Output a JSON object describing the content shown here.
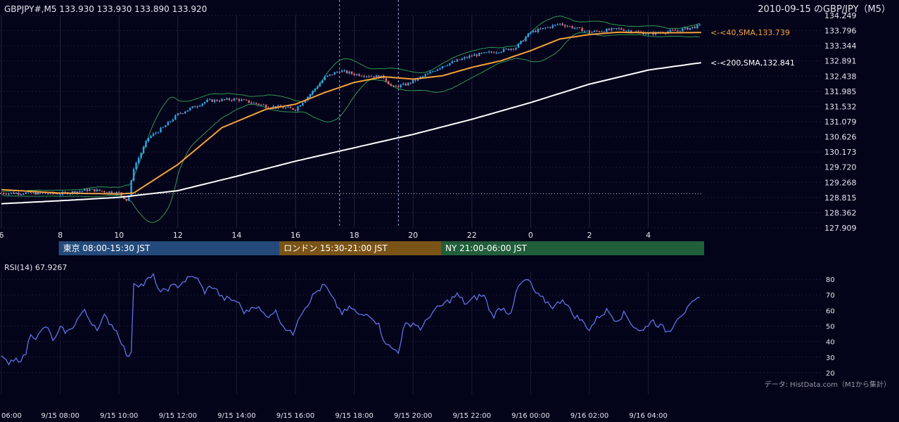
{
  "header": {
    "symbol_info": "GBPJPY#,M5 133.930 133.930 133.890 133.920",
    "chart_title": "2010-09-15 のGBP/JPY（M5）"
  },
  "colors": {
    "background": "#03031a",
    "bull": "#2aa8e8",
    "bear": "#e06a6a",
    "sma40": "#f5a33a",
    "sma200": "#ffffff",
    "bollinger": "#2e9a52",
    "rsi": "#5f74e6",
    "session_tokyo": "#234a7a",
    "session_london": "#7a5416",
    "session_ny": "#215e3a"
  },
  "chart_data": [
    {
      "type": "candlestick",
      "ylim": [
        127.909,
        134.249
      ],
      "y_ticks": [
        "134.249",
        "133.796",
        "133.344",
        "132.891",
        "132.438",
        "131.985",
        "131.532",
        "131.079",
        "130.626",
        "130.173",
        "129.720",
        "129.268",
        "128.815",
        "128.362",
        "127.909"
      ],
      "x_hour_labels": [
        "6",
        "8",
        "10",
        "12",
        "14",
        "16",
        "18",
        "20",
        "22",
        "0",
        "2",
        "4"
      ],
      "x_datetime_labels": [
        "06:00",
        "9/15 08:00",
        "9/15 10:00",
        "9/15 12:00",
        "9/15 14:00",
        "9/15 16:00",
        "9/15 18:00",
        "9/15 20:00",
        "9/15 22:00",
        "9/16 00:00",
        "9/16 02:00",
        "9/16 04:00"
      ],
      "price_path_hourly": [
        {
          "hour": 6.0,
          "price": 128.95
        },
        {
          "hour": 7.0,
          "price": 128.95
        },
        {
          "hour": 8.0,
          "price": 128.93
        },
        {
          "hour": 9.0,
          "price": 129.05
        },
        {
          "hour": 10.0,
          "price": 128.95
        },
        {
          "hour": 10.3,
          "price": 128.7
        },
        {
          "hour": 10.5,
          "price": 129.7
        },
        {
          "hour": 11.0,
          "price": 130.6
        },
        {
          "hour": 11.5,
          "price": 130.9
        },
        {
          "hour": 12.0,
          "price": 131.3
        },
        {
          "hour": 13.0,
          "price": 131.7
        },
        {
          "hour": 14.0,
          "price": 131.75
        },
        {
          "hour": 15.0,
          "price": 131.55
        },
        {
          "hour": 16.0,
          "price": 131.45
        },
        {
          "hour": 16.5,
          "price": 131.9
        },
        {
          "hour": 17.0,
          "price": 132.4
        },
        {
          "hour": 17.5,
          "price": 132.6
        },
        {
          "hour": 18.0,
          "price": 132.5
        },
        {
          "hour": 19.0,
          "price": 132.4
        },
        {
          "hour": 19.3,
          "price": 132.1
        },
        {
          "hour": 19.8,
          "price": 132.2
        },
        {
          "hour": 20.5,
          "price": 132.5
        },
        {
          "hour": 21.0,
          "price": 132.75
        },
        {
          "hour": 22.0,
          "price": 133.05
        },
        {
          "hour": 23.0,
          "price": 133.2
        },
        {
          "hour": 23.5,
          "price": 133.3
        },
        {
          "hour": 24.0,
          "price": 133.75
        },
        {
          "hour": 25.0,
          "price": 134.0
        },
        {
          "hour": 26.0,
          "price": 133.75
        },
        {
          "hour": 27.0,
          "price": 133.85
        },
        {
          "hour": 28.0,
          "price": 133.7
        },
        {
          "hour": 29.0,
          "price": 133.8
        },
        {
          "hour": 29.8,
          "price": 133.95
        }
      ],
      "sma40_hourly": [
        {
          "hour": 6.0,
          "price": 129.05
        },
        {
          "hour": 8.0,
          "price": 128.95
        },
        {
          "hour": 10.0,
          "price": 128.92
        },
        {
          "hour": 10.5,
          "price": 128.95
        },
        {
          "hour": 12.0,
          "price": 129.8
        },
        {
          "hour": 13.5,
          "price": 130.9
        },
        {
          "hour": 15.0,
          "price": 131.45
        },
        {
          "hour": 16.0,
          "price": 131.6
        },
        {
          "hour": 17.0,
          "price": 131.95
        },
        {
          "hour": 18.0,
          "price": 132.25
        },
        {
          "hour": 19.0,
          "price": 132.42
        },
        {
          "hour": 20.0,
          "price": 132.35
        },
        {
          "hour": 21.0,
          "price": 132.45
        },
        {
          "hour": 22.0,
          "price": 132.7
        },
        {
          "hour": 23.0,
          "price": 132.9
        },
        {
          "hour": 24.0,
          "price": 133.2
        },
        {
          "hour": 25.0,
          "price": 133.55
        },
        {
          "hour": 26.0,
          "price": 133.68
        },
        {
          "hour": 27.0,
          "price": 133.75
        },
        {
          "hour": 28.0,
          "price": 133.73
        },
        {
          "hour": 29.8,
          "price": 133.739
        }
      ],
      "sma200_hourly": [
        {
          "hour": 6.0,
          "price": 128.63
        },
        {
          "hour": 8.0,
          "price": 128.72
        },
        {
          "hour": 10.0,
          "price": 128.82
        },
        {
          "hour": 12.0,
          "price": 129.02
        },
        {
          "hour": 14.0,
          "price": 129.45
        },
        {
          "hour": 16.0,
          "price": 129.9
        },
        {
          "hour": 18.0,
          "price": 130.3
        },
        {
          "hour": 20.0,
          "price": 130.7
        },
        {
          "hour": 22.0,
          "price": 131.15
        },
        {
          "hour": 24.0,
          "price": 131.65
        },
        {
          "hour": 26.0,
          "price": 132.2
        },
        {
          "hour": 28.0,
          "price": 132.62
        },
        {
          "hour": 29.8,
          "price": 132.841
        }
      ],
      "sma40_label": "<-<40,SMA,133.739",
      "sma200_label": "<-<200,SMA,132.841",
      "reference_level": 128.93,
      "session_markers_hours": [
        17.5,
        19.5
      ]
    },
    {
      "type": "line",
      "title": "RSI(14) 67.9267",
      "ylim": [
        15,
        85
      ],
      "y_ticks": [
        20,
        30,
        40,
        50,
        60,
        70,
        80
      ],
      "rsi_hourly": [
        {
          "hour": 6.0,
          "value": 32
        },
        {
          "hour": 6.2,
          "value": 25
        },
        {
          "hour": 6.5,
          "value": 28
        },
        {
          "hour": 6.8,
          "value": 30
        },
        {
          "hour": 7.0,
          "value": 46
        },
        {
          "hour": 7.2,
          "value": 42
        },
        {
          "hour": 7.5,
          "value": 50
        },
        {
          "hour": 7.8,
          "value": 40
        },
        {
          "hour": 8.0,
          "value": 48
        },
        {
          "hour": 8.3,
          "value": 46
        },
        {
          "hour": 8.5,
          "value": 52
        },
        {
          "hour": 8.8,
          "value": 60
        },
        {
          "hour": 9.0,
          "value": 54
        },
        {
          "hour": 9.3,
          "value": 48
        },
        {
          "hour": 9.5,
          "value": 56
        },
        {
          "hour": 9.8,
          "value": 50
        },
        {
          "hour": 10.0,
          "value": 44
        },
        {
          "hour": 10.2,
          "value": 34
        },
        {
          "hour": 10.4,
          "value": 26
        },
        {
          "hour": 10.5,
          "value": 78
        },
        {
          "hour": 10.8,
          "value": 76
        },
        {
          "hour": 11.0,
          "value": 80
        },
        {
          "hour": 11.2,
          "value": 82
        },
        {
          "hour": 11.4,
          "value": 70
        },
        {
          "hour": 11.6,
          "value": 74
        },
        {
          "hour": 12.0,
          "value": 76
        },
        {
          "hour": 12.3,
          "value": 80
        },
        {
          "hour": 12.6,
          "value": 82
        },
        {
          "hour": 12.9,
          "value": 72
        },
        {
          "hour": 13.2,
          "value": 76
        },
        {
          "hour": 13.5,
          "value": 68
        },
        {
          "hour": 14.0,
          "value": 66
        },
        {
          "hour": 14.3,
          "value": 58
        },
        {
          "hour": 14.6,
          "value": 64
        },
        {
          "hour": 15.0,
          "value": 56
        },
        {
          "hour": 15.3,
          "value": 60
        },
        {
          "hour": 15.6,
          "value": 50
        },
        {
          "hour": 15.9,
          "value": 44
        },
        {
          "hour": 16.1,
          "value": 56
        },
        {
          "hour": 16.4,
          "value": 64
        },
        {
          "hour": 16.7,
          "value": 72
        },
        {
          "hour": 17.0,
          "value": 76
        },
        {
          "hour": 17.3,
          "value": 66
        },
        {
          "hour": 17.6,
          "value": 58
        },
        {
          "hour": 17.9,
          "value": 62
        },
        {
          "hour": 18.2,
          "value": 56
        },
        {
          "hour": 18.5,
          "value": 58
        },
        {
          "hour": 18.8,
          "value": 52
        },
        {
          "hour": 19.0,
          "value": 42
        },
        {
          "hour": 19.2,
          "value": 36
        },
        {
          "hour": 19.5,
          "value": 34
        },
        {
          "hour": 19.7,
          "value": 50
        },
        {
          "hour": 20.0,
          "value": 52
        },
        {
          "hour": 20.3,
          "value": 48
        },
        {
          "hour": 20.6,
          "value": 58
        },
        {
          "hour": 20.9,
          "value": 62
        },
        {
          "hour": 21.2,
          "value": 66
        },
        {
          "hour": 21.5,
          "value": 70
        },
        {
          "hour": 21.8,
          "value": 64
        },
        {
          "hour": 22.1,
          "value": 68
        },
        {
          "hour": 22.4,
          "value": 70
        },
        {
          "hour": 22.7,
          "value": 56
        },
        {
          "hour": 23.0,
          "value": 62
        },
        {
          "hour": 23.3,
          "value": 58
        },
        {
          "hour": 23.6,
          "value": 76
        },
        {
          "hour": 23.9,
          "value": 80
        },
        {
          "hour": 24.2,
          "value": 70
        },
        {
          "hour": 24.5,
          "value": 66
        },
        {
          "hour": 24.8,
          "value": 62
        },
        {
          "hour": 25.1,
          "value": 68
        },
        {
          "hour": 25.4,
          "value": 58
        },
        {
          "hour": 25.7,
          "value": 54
        },
        {
          "hour": 26.0,
          "value": 48
        },
        {
          "hour": 26.3,
          "value": 56
        },
        {
          "hour": 26.6,
          "value": 60
        },
        {
          "hour": 26.9,
          "value": 54
        },
        {
          "hour": 27.2,
          "value": 58
        },
        {
          "hour": 27.5,
          "value": 50
        },
        {
          "hour": 27.8,
          "value": 46
        },
        {
          "hour": 28.1,
          "value": 54
        },
        {
          "hour": 28.4,
          "value": 50
        },
        {
          "hour": 28.7,
          "value": 46
        },
        {
          "hour": 29.0,
          "value": 56
        },
        {
          "hour": 29.3,
          "value": 60
        },
        {
          "hour": 29.6,
          "value": 66
        },
        {
          "hour": 29.8,
          "value": 67.9
        }
      ]
    }
  ],
  "sessions": [
    {
      "label": "東京 08:00-15:30 JST",
      "start_hour": 8.0,
      "end_hour": 15.5
    },
    {
      "label": "ロンドン 15:30-21:00 JST",
      "start_hour": 15.5,
      "end_hour": 21.0
    },
    {
      "label": "NY 21:00-06:00 JST",
      "start_hour": 21.0,
      "end_hour": 29.9
    }
  ],
  "footer": {
    "credit": "データ: HistData.com（M1から集計）"
  }
}
